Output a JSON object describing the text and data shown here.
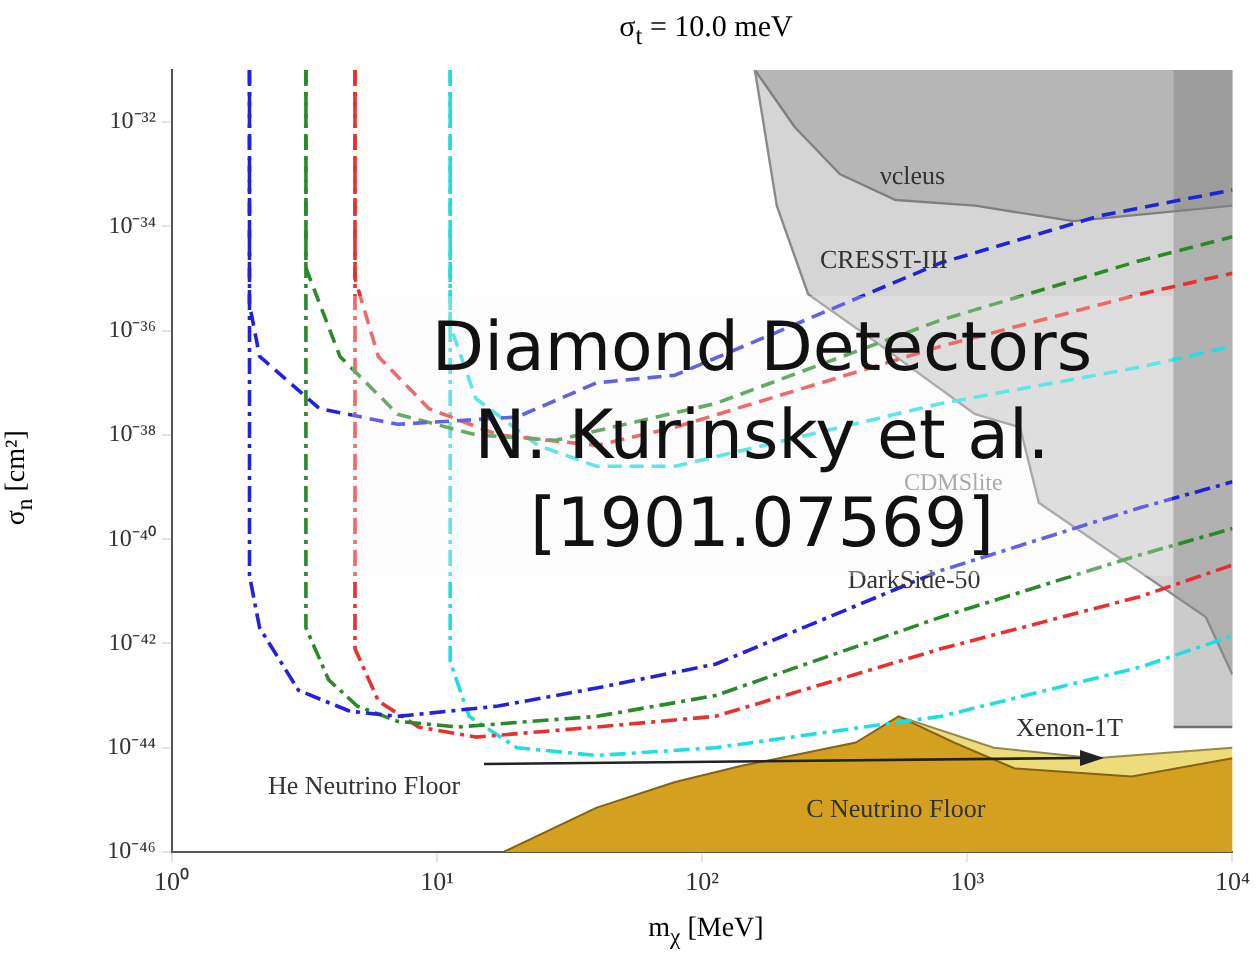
{
  "chart_data": {
    "type": "line",
    "title": "σ$_{t}$ = 10.0 meV",
    "xlabel": "m$_{χ}$ [MeV]",
    "ylabel": "σ$_{n}$ [cm²]",
    "log": "xy",
    "grid": false,
    "legend": false,
    "marker": "none",
    "xlim": [
      1,
      10000
    ],
    "xticks": [
      {
        "value": 1,
        "label": "10⁰"
      },
      {
        "value": 10,
        "label": "10¹"
      },
      {
        "value": 100,
        "label": "10²"
      },
      {
        "value": 1000,
        "label": "10³"
      },
      {
        "value": 10000,
        "label": "10⁴"
      }
    ],
    "ylim": [
      1e-46,
      1e-31
    ],
    "yticks": [
      {
        "value": 1e-46,
        "label": "10⁻⁴⁶"
      },
      {
        "value": 1e-44,
        "label": "10⁻⁴⁴"
      },
      {
        "value": 1e-42,
        "label": "10⁻⁴²"
      },
      {
        "value": 1e-40,
        "label": "10⁻⁴⁰"
      },
      {
        "value": 1e-38,
        "label": "10⁻³⁸"
      },
      {
        "value": 1e-36,
        "label": "10⁻³⁶"
      },
      {
        "value": 1e-34,
        "label": "10⁻³⁴"
      },
      {
        "value": 1e-32,
        "label": "10⁻³²"
      }
    ],
    "series": [
      {
        "color": "#8a8a8a",
        "x": [
          158,
          191,
          251,
          447,
          1070,
          1580,
          1860,
          7940,
          10000
        ],
        "values": [
          1e-31,
          2.5e-34,
          5e-36,
          6.3e-37,
          2.5e-38,
          1.4e-38,
          5e-40,
          3.2e-42,
          2.5e-43
        ],
        "lower": [
          1e-31,
          2.5e-34,
          5e-36,
          6.3e-37,
          2.5e-38,
          1.4e-38,
          5e-40,
          3.2e-42,
          2.5e-43
        ],
        "upper": [
          1e-31,
          1e-31,
          1e-31,
          1e-31,
          1e-31,
          1e-31,
          1e-31,
          1e-31,
          1e-31
        ]
      },
      {
        "color": "#808080",
        "x": [
          158,
          224,
          331,
          537,
          1070,
          2510,
          10000
        ],
        "values": [
          1e-31,
          7.9e-33,
          1e-33,
          3.2e-34,
          2.5e-34,
          1.26e-34,
          2.5e-34
        ],
        "lower": [
          1e-31,
          7.9e-33,
          1e-33,
          3.2e-34,
          2.5e-34,
          1.26e-34,
          2.5e-34
        ],
        "upper": [
          1e-31,
          1e-31,
          1e-31,
          1e-31,
          1e-31,
          1e-31,
          1e-31
        ]
      },
      {
        "color": "#707070",
        "x": [
          6000,
          10000
        ],
        "values": [
          2.5e-44,
          2.5e-44
        ],
        "lower": [
          2.5e-44,
          2.5e-44
        ],
        "upper": [
          1e-31,
          1e-31
        ]
      },
      {
        "type": "area",
        "color": "#eedc7a",
        "x": [
          550,
          1260,
          3020,
          10000
        ],
        "values": [
          4e-44,
          1e-44,
          6.3e-45,
          1e-44
        ]
      },
      {
        "type": "area",
        "color": "#d4a020",
        "x": [
          17.8,
          40,
          79,
          141,
          380,
          550,
          890,
          1510,
          4170,
          10000
        ],
        "values": [
          1e-46,
          7.1e-46,
          2.2e-45,
          4.5e-45,
          1.26e-44,
          4e-44,
          1.26e-44,
          4e-45,
          2.8e-45,
          6.3e-45
        ]
      },
      {
        "line_style": "dashed",
        "color": "#2222dd",
        "x": [
          1.96,
          1.96,
          2.14,
          3.6,
          7.1,
          20,
          40,
          79,
          794,
          3160,
          10000
        ],
        "values": [
          1e-31,
          3.2e-36,
          3.2e-37,
          3.2e-38,
          1.6e-38,
          2.2e-38,
          1e-37,
          1.4e-37,
          2e-35,
          1.6e-34,
          5e-34
        ]
      },
      {
        "line_style": "dashed",
        "color": "#2a8a2a",
        "x": [
          3.2,
          3.2,
          4.3,
          7.1,
          14,
          28,
          112,
          794,
          4470,
          10000
        ],
        "values": [
          1e-31,
          1.6e-35,
          3.2e-37,
          2.5e-38,
          1e-38,
          7.9e-39,
          4e-38,
          1.6e-36,
          2.2e-35,
          6.3e-35
        ]
      },
      {
        "line_style": "dashed",
        "color": "#e8302f",
        "x": [
          4.9,
          4.9,
          6.0,
          9.3,
          17,
          40,
          79,
          794,
          4470,
          10000
        ],
        "values": [
          1e-31,
          1e-35,
          3.2e-37,
          3.2e-38,
          1e-38,
          6.3e-39,
          1.4e-38,
          5e-37,
          5e-36,
          1.26e-35
        ]
      },
      {
        "line_style": "dashed",
        "color": "#20dede",
        "x": [
          11.2,
          11.2,
          14,
          24,
          40,
          79,
          794,
          4470,
          10000
        ],
        "values": [
          1e-31,
          1.26e-36,
          5e-38,
          6.3e-39,
          2.5e-39,
          2.5e-39,
          4e-38,
          2e-37,
          5e-37
        ]
      },
      {
        "line_style": "dashdot",
        "color": "#2222dd",
        "x": [
          1.96,
          1.96,
          2.14,
          3.0,
          4.7,
          7.1,
          17,
          40,
          112,
          794,
          4470,
          10000
        ],
        "values": [
          1e-31,
          2e-41,
          2e-42,
          1.26e-43,
          5e-44,
          4e-44,
          6.3e-44,
          1.4e-43,
          4e-43,
          2.5e-41,
          4e-40,
          1.26e-39
        ]
      },
      {
        "line_style": "dashdot",
        "color": "#2a8a2a",
        "x": [
          3.2,
          3.2,
          3.9,
          5.0,
          7.1,
          12,
          40,
          112,
          794,
          4470,
          10000
        ],
        "values": [
          1e-31,
          2e-42,
          2e-43,
          6.3e-44,
          3.2e-44,
          2.5e-44,
          4e-44,
          1e-43,
          3.2e-42,
          5e-41,
          1.6e-40
        ]
      },
      {
        "line_style": "dashdot",
        "color": "#e8302f",
        "x": [
          4.9,
          4.9,
          6.0,
          8.5,
          14,
          40,
          112,
          794,
          4470,
          10000
        ],
        "values": [
          1e-31,
          7.9e-43,
          7.9e-44,
          2.5e-44,
          1.6e-44,
          2.5e-44,
          4e-44,
          7.9e-43,
          7.9e-42,
          3.2e-41
        ]
      },
      {
        "line_style": "dashdot",
        "color": "#20dede",
        "x": [
          11.2,
          11.2,
          13.2,
          20,
          40,
          112,
          794,
          4470,
          10000
        ],
        "values": [
          1e-31,
          4.5e-43,
          4e-44,
          1e-44,
          7.1e-45,
          1e-44,
          4e-44,
          3.5e-43,
          1.4e-42
        ]
      }
    ],
    "annotations": [
      "νcleus",
      "CRESST-III",
      "CDMSlite",
      {
        "text": "DarkSide-50",
        "x": 630,
        "y": 1.6e-41
      },
      "Xenon-1T",
      "He Neutrino Floor",
      {
        "text": "C Neutrino Floor",
        "x": 537,
        "y": 6.3e-46
      },
      "Diamond Detectors\nN. Kurinsky et al.\n[1901.07569]"
    ]
  }
}
